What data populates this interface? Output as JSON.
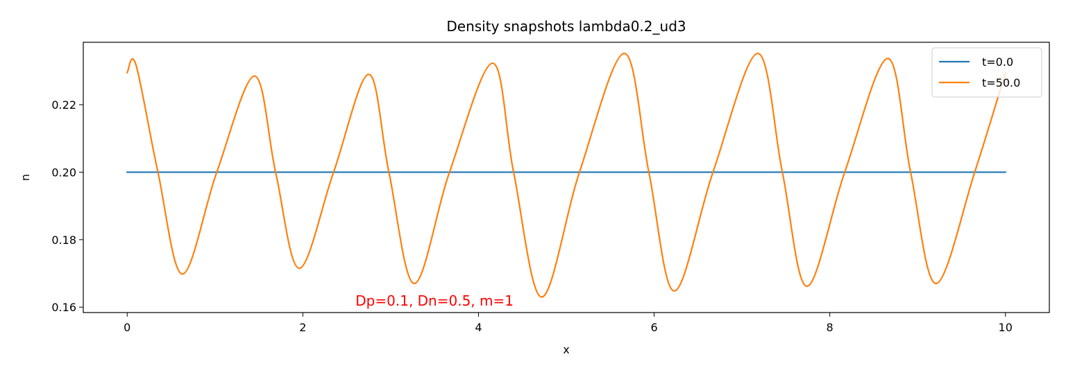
{
  "chart_data": {
    "type": "line",
    "title": "Density snapshots  lambda0.2_ud3",
    "xlabel": "x",
    "ylabel": "n",
    "xlim": [
      -0.5,
      10.5
    ],
    "ylim": [
      0.1584,
      0.2385
    ],
    "x_ticks": [
      0,
      2,
      4,
      6,
      8,
      10
    ],
    "x_tick_labels": [
      "0",
      "2",
      "4",
      "6",
      "8",
      "10"
    ],
    "y_ticks": [
      0.16,
      0.18,
      0.2,
      0.22
    ],
    "y_tick_labels": [
      "0.16",
      "0.18",
      "0.20",
      "0.22"
    ],
    "grid": false,
    "legend_position": "upper-right",
    "series": [
      {
        "name": "t=0.0",
        "color": "#1f77b4",
        "x": [
          0,
          10
        ],
        "y": [
          0.2,
          0.2
        ]
      },
      {
        "name": "t=50.0",
        "color": "#ff7f0e",
        "x": [
          0.0,
          0.1,
          0.35,
          0.63,
          1.02,
          1.45,
          1.69,
          1.96,
          2.35,
          2.75,
          2.98,
          3.27,
          3.67,
          4.16,
          4.4,
          4.72,
          5.15,
          5.66,
          5.94,
          6.23,
          6.67,
          7.18,
          7.46,
          7.74,
          8.17,
          8.66,
          8.92,
          9.21,
          9.65,
          10.0
        ],
        "y": [
          0.2295,
          0.2318,
          0.2,
          0.1698,
          0.2,
          0.2285,
          0.2,
          0.1715,
          0.2,
          0.229,
          0.2,
          0.167,
          0.2,
          0.2323,
          0.2,
          0.163,
          0.2,
          0.2352,
          0.2,
          0.1648,
          0.2,
          0.2352,
          0.2,
          0.1662,
          0.2,
          0.2337,
          0.2,
          0.167,
          0.2,
          0.2295
        ]
      }
    ],
    "annotations": [
      {
        "text": "Dp=0.1, Dn=0.5, m=1",
        "x": 2.6,
        "y": 0.1605,
        "color": "#ff0000"
      }
    ]
  }
}
